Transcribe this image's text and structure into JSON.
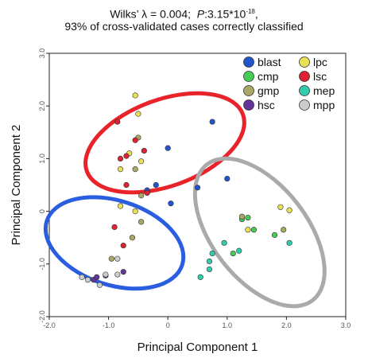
{
  "chart_data": {
    "type": "scatter",
    "title_line1": "Wilks’ λ = 0.004;",
    "title_p_label": "P",
    "title_p_value": ":3.15*10",
    "title_p_exp": "-18",
    "title_line1_end": ",",
    "title_line2": "93% of cross-validated cases correctly classified",
    "xlabel": "Principal Component 1",
    "ylabel": "Principal Component 2",
    "xlim": [
      -2.0,
      3.0
    ],
    "ylim": [
      -2.0,
      3.0
    ],
    "xticks": [
      -2.0,
      -1.0,
      0.0,
      1.0,
      2.0,
      3.0
    ],
    "yticks": [
      -2.0,
      -1.0,
      0.0,
      1.0,
      2.0,
      3.0
    ],
    "xtick_labels": [
      "-2.0",
      "-1.0",
      "0",
      "1.0",
      "2.0",
      "3.0"
    ],
    "ytick_labels": [
      "-2.0",
      "-1.0",
      "0",
      "1.0",
      "2.0",
      "3.0"
    ],
    "legend_position": "top-right",
    "series": [
      {
        "name": "blast",
        "color": "#2255cc",
        "points": [
          [
            0.0,
            1.2
          ],
          [
            0.75,
            1.7
          ],
          [
            -0.2,
            0.5
          ],
          [
            0.05,
            0.15
          ],
          [
            -0.35,
            0.4
          ],
          [
            0.5,
            0.45
          ],
          [
            1.0,
            0.62
          ]
        ]
      },
      {
        "name": "cmp",
        "color": "#44cc55",
        "points": [
          [
            1.1,
            -0.8
          ],
          [
            1.25,
            -0.15
          ],
          [
            1.35,
            -0.12
          ],
          [
            1.45,
            -0.35
          ],
          [
            1.8,
            -0.45
          ]
        ]
      },
      {
        "name": "gmp",
        "color": "#aaa866",
        "points": [
          [
            -0.5,
            1.4
          ],
          [
            -0.55,
            0.8
          ],
          [
            -0.45,
            0.3
          ],
          [
            -0.45,
            -0.2
          ],
          [
            -0.6,
            -0.5
          ],
          [
            -0.95,
            -0.9
          ],
          [
            1.95,
            -0.35
          ],
          [
            1.25,
            -0.1
          ]
        ]
      },
      {
        "name": "hsc",
        "color": "#663399",
        "points": [
          [
            -1.25,
            -1.3
          ],
          [
            -1.2,
            -1.25
          ],
          [
            -1.05,
            -1.22
          ],
          [
            -0.75,
            -1.15
          ]
        ]
      },
      {
        "name": "lpc",
        "color": "#e8e055",
        "points": [
          [
            -0.55,
            2.2
          ],
          [
            -0.5,
            1.85
          ],
          [
            -0.65,
            1.1
          ],
          [
            -0.8,
            0.8
          ],
          [
            -0.45,
            0.95
          ],
          [
            -0.55,
            0.0
          ],
          [
            -0.8,
            0.1
          ],
          [
            1.35,
            -0.35
          ],
          [
            1.9,
            0.08
          ],
          [
            2.05,
            0.02
          ]
        ]
      },
      {
        "name": "lsc",
        "color": "#dd2233",
        "points": [
          [
            -0.85,
            1.7
          ],
          [
            -0.7,
            1.05
          ],
          [
            -0.55,
            1.35
          ],
          [
            -0.4,
            1.15
          ],
          [
            -0.8,
            1.0
          ],
          [
            -0.7,
            0.5
          ],
          [
            -0.35,
            0.35
          ],
          [
            -0.9,
            -0.3
          ],
          [
            -0.75,
            -0.65
          ]
        ]
      },
      {
        "name": "mep",
        "color": "#33ccaa",
        "points": [
          [
            0.7,
            -1.1
          ],
          [
            0.7,
            -0.95
          ],
          [
            0.75,
            -0.8
          ],
          [
            0.55,
            -1.25
          ],
          [
            0.95,
            -0.6
          ],
          [
            1.2,
            -0.75
          ],
          [
            2.05,
            -0.6
          ]
        ]
      },
      {
        "name": "mpp",
        "color": "#cccccc",
        "points": [
          [
            -1.45,
            -1.25
          ],
          [
            -1.35,
            -1.3
          ],
          [
            -1.15,
            -1.4
          ],
          [
            -1.05,
            -1.2
          ],
          [
            -0.85,
            -0.9
          ],
          [
            -0.85,
            -1.2
          ]
        ]
      }
    ],
    "ellipses": [
      {
        "group": "upper",
        "color": "#e8232a",
        "cx": -0.05,
        "cy": 1.3,
        "rx": 1.4,
        "ry": 0.82,
        "angle_deg": -20
      },
      {
        "group": "lower-left",
        "color": "#2a5de0",
        "cx": -0.9,
        "cy": -0.6,
        "rx": 1.2,
        "ry": 0.8,
        "angle_deg": 18
      },
      {
        "group": "right",
        "color": "#aaaaaa",
        "cx": 1.55,
        "cy": -0.4,
        "rx": 1.45,
        "ry": 0.9,
        "angle_deg": 52
      }
    ]
  }
}
